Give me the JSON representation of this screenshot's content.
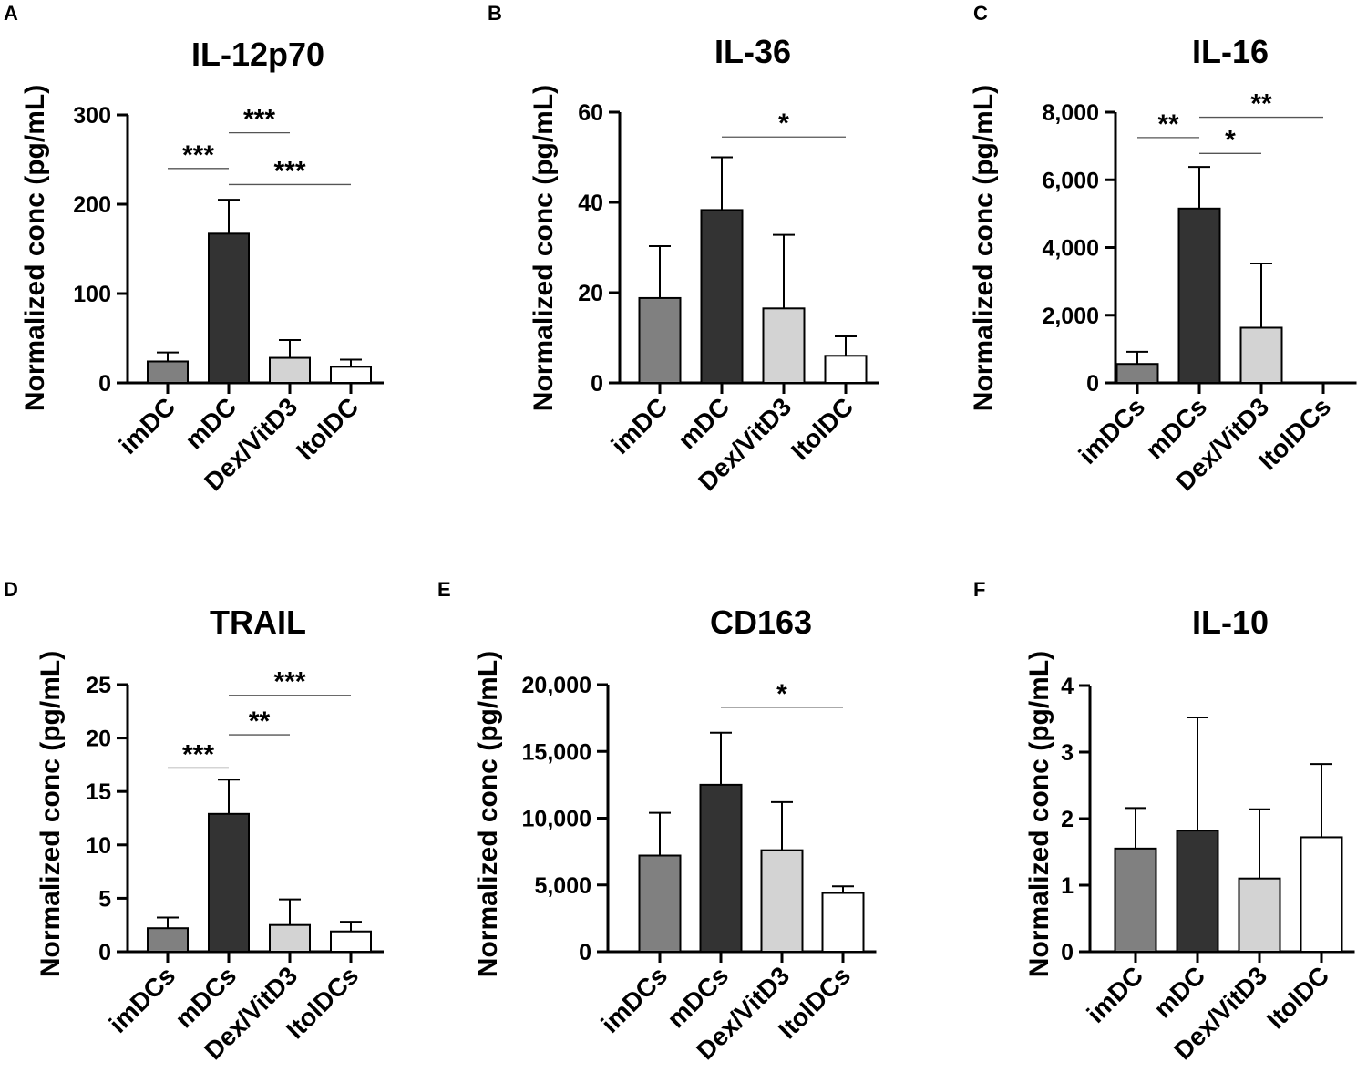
{
  "figure": {
    "colors": {
      "imDC": "#808080",
      "mDC": "#333333",
      "Dex/VitD3": "#d3d3d3",
      "ItolDC": "#ffffff",
      "axis": "#000000",
      "sigline": "#555555"
    }
  },
  "chart_data": [
    {
      "panel": "A",
      "type": "bar",
      "title": "IL-12p70",
      "ylabel": "Normalized conc (pg/mL)",
      "categories": [
        "imDC",
        "mDC",
        "Dex/VitD3",
        "ItolDC"
      ],
      "values": [
        24,
        167,
        28,
        18
      ],
      "errors": [
        34,
        205,
        48,
        26
      ],
      "ylim": [
        0,
        300
      ],
      "yticks": [
        0,
        100,
        200,
        300
      ],
      "ytick_labels": [
        "0",
        "100",
        "200",
        "300"
      ],
      "significance": [
        {
          "from": 0,
          "to": 1,
          "label": "***",
          "y": 240
        },
        {
          "from": 1,
          "to": 2,
          "label": "***",
          "y": 280
        },
        {
          "from": 1,
          "to": 3,
          "label": "***",
          "y": 222
        }
      ]
    },
    {
      "panel": "B",
      "type": "bar",
      "title": "IL-36",
      "ylabel": "Normalized conc (pg/mL)",
      "categories": [
        "imDC",
        "mDC",
        "Dex/VitD3",
        "ItolDC"
      ],
      "values": [
        18.8,
        38.3,
        16.5,
        6
      ],
      "errors": [
        30.3,
        50,
        32.8,
        10.3
      ],
      "ylim": [
        0,
        60
      ],
      "yticks": [
        0,
        20,
        40,
        60
      ],
      "ytick_labels": [
        "0",
        "20",
        "40",
        "60"
      ],
      "significance": [
        {
          "from": 1,
          "to": 3,
          "label": "*",
          "y": 54.5
        }
      ]
    },
    {
      "panel": "C",
      "type": "bar",
      "title": "IL-16",
      "ylabel": "Normalized conc (pg/mL)",
      "categories": [
        "imDCs",
        "mDCs",
        "Dex/VitD3",
        "ItolDCs"
      ],
      "values": [
        560,
        5150,
        1630,
        0
      ],
      "errors": [
        920,
        6380,
        3530,
        0
      ],
      "ylim": [
        0,
        8000
      ],
      "yticks": [
        0,
        2000,
        4000,
        6000,
        8000
      ],
      "ytick_labels": [
        "0",
        "2,000",
        "4,000",
        "6,000",
        "8,000"
      ],
      "significance": [
        {
          "from": 0,
          "to": 1,
          "label": "**",
          "y": 7250
        },
        {
          "from": 1,
          "to": 2,
          "label": "*",
          "y": 6780
        },
        {
          "from": 1,
          "to": 3,
          "label": "**",
          "y": 7850
        }
      ]
    },
    {
      "panel": "D",
      "type": "bar",
      "title": "TRAIL",
      "ylabel": "Normalized conc (pg/mL)",
      "categories": [
        "imDCs",
        "mDCs",
        "Dex/VitD3",
        "ItolDCs"
      ],
      "values": [
        2.2,
        12.9,
        2.5,
        1.9
      ],
      "errors": [
        3.2,
        16.1,
        4.9,
        2.8
      ],
      "ylim": [
        0,
        25
      ],
      "yticks": [
        0,
        5,
        10,
        15,
        20,
        25
      ],
      "ytick_labels": [
        "0",
        "5",
        "10",
        "15",
        "20",
        "25"
      ],
      "significance": [
        {
          "from": 0,
          "to": 1,
          "label": "***",
          "y": 17.2
        },
        {
          "from": 1,
          "to": 2,
          "label": "**",
          "y": 20.3
        },
        {
          "from": 1,
          "to": 3,
          "label": "***",
          "y": 24
        }
      ]
    },
    {
      "panel": "E",
      "type": "bar",
      "title": "CD163",
      "ylabel": "Normalized conc (pg/mL)",
      "categories": [
        "imDCs",
        "mDCs",
        "Dex/VitD3",
        "ItolDCs"
      ],
      "values": [
        7200,
        12500,
        7600,
        4400
      ],
      "errors": [
        10400,
        16400,
        11200,
        4900
      ],
      "ylim": [
        0,
        20000
      ],
      "yticks": [
        0,
        5000,
        10000,
        15000,
        20000
      ],
      "ytick_labels": [
        "0",
        "5,000",
        "10,000",
        "15,000",
        "20,000"
      ],
      "significance": [
        {
          "from": 1,
          "to": 3,
          "label": "*",
          "y": 18300
        }
      ]
    },
    {
      "panel": "F",
      "type": "bar",
      "title": "IL-10",
      "ylabel": "Normalized conc (pg/mL)",
      "categories": [
        "imDC",
        "mDC",
        "Dex/VitD3",
        "ItolDC"
      ],
      "values": [
        1.55,
        1.82,
        1.1,
        1.72
      ],
      "errors": [
        2.16,
        3.52,
        2.14,
        2.82
      ],
      "ylim": [
        0,
        4
      ],
      "yticks": [
        0,
        1,
        2,
        3,
        4
      ],
      "ytick_labels": [
        "0",
        "1",
        "2",
        "3",
        "4"
      ],
      "significance": []
    }
  ]
}
